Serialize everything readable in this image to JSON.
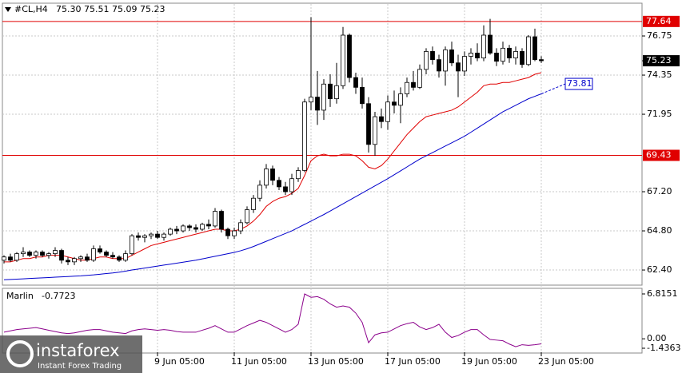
{
  "watermark": {
    "brand": "instaforex",
    "tagline": "Instant Forex Trading"
  },
  "chart_data": [
    {
      "type": "candlestick",
      "symbol": "#CL,H4",
      "quote": "75.30 75.51 75.09 75.23",
      "up_color": "#ffffff",
      "down_color": "#000000",
      "categories": [
        null,
        null,
        null,
        null,
        null,
        null,
        null,
        null,
        null,
        null,
        null,
        null,
        null,
        null,
        null,
        null,
        null,
        null,
        null,
        null,
        null,
        null,
        null,
        null,
        "9 Jun 05:00",
        null,
        null,
        null,
        null,
        null,
        null,
        null,
        null,
        null,
        null,
        null,
        "11 Jun 05:00",
        null,
        null,
        null,
        null,
        null,
        null,
        null,
        null,
        null,
        null,
        null,
        "13 Jun 05:00",
        null,
        null,
        null,
        null,
        null,
        null,
        null,
        null,
        null,
        null,
        null,
        "17 Jun 05:00",
        null,
        null,
        null,
        null,
        null,
        null,
        null,
        null,
        null,
        null,
        null,
        "19 Jun 05:00",
        null,
        null,
        null,
        null,
        null,
        null,
        null,
        null,
        null,
        null,
        null,
        "23 Jun 05:00"
      ],
      "open": [
        63.0,
        63.2,
        63.0,
        63.4,
        63.5,
        63.3,
        63.5,
        63.3,
        63.4,
        63.6,
        63.0,
        62.9,
        63.1,
        63.2,
        63.0,
        63.7,
        63.5,
        63.3,
        63.2,
        63.0,
        63.4,
        64.5,
        64.4,
        64.5,
        64.6,
        64.4,
        64.6,
        64.9,
        64.8,
        65.1,
        65.0,
        64.9,
        65.2,
        65.1,
        66.0,
        64.9,
        64.5,
        64.8,
        65.3,
        66.1,
        66.8,
        67.6,
        68.6,
        67.9,
        67.5,
        67.2,
        68.0,
        68.5,
        72.7,
        73.0,
        72.2,
        73.8,
        72.9,
        73.7,
        76.8,
        74.2,
        73.6,
        72.6,
        70.1,
        71.8,
        71.5,
        72.7,
        72.5,
        73.2,
        73.9,
        73.6,
        74.7,
        75.8,
        75.3,
        74.6,
        75.9,
        75.1,
        74.6,
        75.5,
        75.7,
        75.4,
        76.8,
        75.7,
        75.2,
        76.0,
        75.4,
        75.8,
        75.0,
        76.7,
        75.3
      ],
      "high": [
        63.3,
        63.4,
        63.5,
        63.8,
        63.6,
        63.6,
        63.6,
        63.5,
        63.8,
        63.7,
        63.2,
        63.2,
        63.3,
        63.4,
        63.9,
        63.9,
        63.6,
        63.5,
        63.3,
        63.6,
        64.6,
        64.7,
        64.6,
        64.7,
        64.8,
        64.7,
        65.0,
        65.1,
        65.2,
        65.2,
        65.2,
        65.3,
        65.5,
        66.2,
        66.1,
        65.0,
        65.0,
        65.5,
        66.3,
        67.0,
        67.9,
        68.9,
        68.8,
        68.1,
        67.8,
        68.3,
        68.7,
        72.9,
        77.9,
        74.6,
        74.1,
        74.4,
        75.1,
        77.3,
        76.9,
        74.5,
        74.2,
        73.0,
        72.1,
        72.3,
        73.1,
        73.4,
        73.6,
        74.2,
        74.6,
        75.0,
        76.0,
        76.1,
        75.6,
        76.1,
        76.4,
        75.6,
        75.8,
        76.0,
        76.3,
        77.4,
        77.8,
        76.0,
        76.4,
        76.2,
        76.1,
        76.0,
        76.8,
        77.2,
        75.51
      ],
      "low": [
        62.8,
        62.9,
        62.9,
        63.2,
        63.2,
        63.1,
        63.2,
        63.1,
        63.2,
        62.8,
        62.7,
        62.7,
        62.9,
        62.9,
        62.9,
        63.4,
        63.2,
        63.1,
        62.9,
        62.9,
        63.3,
        64.2,
        64.1,
        64.3,
        64.3,
        64.2,
        64.5,
        64.6,
        64.7,
        64.8,
        64.7,
        64.8,
        64.9,
        65.0,
        64.7,
        64.3,
        64.3,
        64.6,
        65.2,
        65.9,
        66.6,
        67.4,
        67.6,
        67.3,
        67.0,
        67.0,
        67.8,
        68.4,
        72.2,
        71.3,
        71.6,
        72.4,
        72.6,
        73.5,
        73.9,
        73.2,
        72.3,
        69.6,
        69.4,
        71.1,
        71.0,
        72.0,
        71.4,
        73.0,
        73.4,
        73.5,
        74.4,
        75.0,
        74.2,
        73.7,
        74.9,
        73.0,
        74.3,
        75.0,
        75.2,
        75.2,
        75.6,
        74.9,
        75.0,
        75.1,
        75.0,
        74.8,
        74.9,
        75.2,
        75.09
      ],
      "close": [
        63.2,
        63.0,
        63.4,
        63.5,
        63.3,
        63.5,
        63.3,
        63.4,
        63.6,
        63.0,
        62.9,
        63.1,
        63.2,
        63.0,
        63.7,
        63.5,
        63.3,
        63.2,
        63.0,
        63.4,
        64.5,
        64.4,
        64.5,
        64.6,
        64.4,
        64.6,
        64.9,
        64.8,
        65.1,
        65.0,
        64.9,
        65.2,
        65.1,
        66.0,
        64.9,
        64.5,
        64.8,
        65.3,
        66.1,
        66.8,
        67.6,
        68.6,
        67.9,
        67.5,
        67.2,
        68.0,
        68.5,
        72.7,
        73.0,
        72.2,
        73.8,
        72.9,
        73.7,
        76.8,
        74.2,
        73.6,
        72.6,
        70.1,
        71.8,
        71.5,
        72.7,
        72.5,
        73.2,
        73.9,
        73.6,
        74.7,
        75.8,
        75.3,
        74.6,
        75.9,
        75.1,
        74.6,
        75.5,
        75.7,
        75.4,
        76.8,
        75.7,
        75.2,
        76.0,
        75.4,
        75.8,
        75.0,
        76.7,
        75.3,
        75.23
      ],
      "last_price_label": "75.23",
      "ylim": [
        61.57,
        78.71
      ],
      "yticks": [
        {
          "value": 62.4,
          "label": "62.40"
        },
        {
          "value": 64.8,
          "label": "64.80"
        },
        {
          "value": 67.2,
          "label": "67.20"
        },
        71.95,
        74.35,
        76.75
      ],
      "grid": true,
      "levels": [
        {
          "value": 77.64,
          "color": "#e00000"
        },
        {
          "value": 69.43,
          "color": "#e00000"
        }
      ],
      "lines": [
        {
          "color": "#e00000",
          "values": [
            62.9,
            62.9,
            63.0,
            63.1,
            63.1,
            63.2,
            63.2,
            63.3,
            63.3,
            63.3,
            63.2,
            63.1,
            63.0,
            63.0,
            63.1,
            63.2,
            63.2,
            63.1,
            63.1,
            63.1,
            63.3,
            63.5,
            63.7,
            63.9,
            64.0,
            64.1,
            64.2,
            64.3,
            64.4,
            64.5,
            64.6,
            64.7,
            64.8,
            64.9,
            64.9,
            64.8,
            64.8,
            64.9,
            65.1,
            65.4,
            65.8,
            66.3,
            66.6,
            66.8,
            66.9,
            67.1,
            67.4,
            68.2,
            69.1,
            69.4,
            69.5,
            69.4,
            69.4,
            69.5,
            69.5,
            69.4,
            69.1,
            68.7,
            68.6,
            68.8,
            69.2,
            69.7,
            70.2,
            70.7,
            71.1,
            71.5,
            71.8,
            71.9,
            72.0,
            72.1,
            72.2,
            72.4,
            72.7,
            73.0,
            73.3,
            73.7,
            73.8,
            73.8,
            73.9,
            73.9,
            74.0,
            74.1,
            74.2,
            74.4,
            74.5
          ]
        },
        {
          "color": "#0000cc",
          "projection": 73.81,
          "values": [
            61.8,
            61.82,
            61.84,
            61.86,
            61.88,
            61.9,
            61.92,
            61.94,
            61.96,
            61.98,
            62.0,
            62.02,
            62.04,
            62.07,
            62.1,
            62.14,
            62.18,
            62.22,
            62.27,
            62.33,
            62.4,
            62.46,
            62.52,
            62.58,
            62.64,
            62.7,
            62.76,
            62.82,
            62.88,
            62.94,
            63.0,
            63.08,
            63.16,
            63.24,
            63.32,
            63.4,
            63.48,
            63.58,
            63.7,
            63.84,
            64.0,
            64.16,
            64.32,
            64.48,
            64.64,
            64.8,
            65.0,
            65.2,
            65.4,
            65.6,
            65.8,
            66.02,
            66.24,
            66.46,
            66.68,
            66.9,
            67.12,
            67.34,
            67.56,
            67.78,
            68.0,
            68.24,
            68.48,
            68.72,
            68.96,
            69.2,
            69.4,
            69.6,
            69.8,
            70.0,
            70.2,
            70.4,
            70.6,
            70.85,
            71.1,
            71.35,
            71.6,
            71.85,
            72.1,
            72.3,
            72.5,
            72.7,
            72.9,
            73.05,
            73.2
          ]
        }
      ]
    },
    {
      "type": "line",
      "name": "Marlin",
      "current": -0.7723,
      "color": "#8b008b",
      "values": [
        1.0,
        1.2,
        1.4,
        1.5,
        1.6,
        1.7,
        1.5,
        1.3,
        1.1,
        0.9,
        0.8,
        0.9,
        1.1,
        1.3,
        1.4,
        1.4,
        1.2,
        1.0,
        0.9,
        0.8,
        1.2,
        1.4,
        1.5,
        1.4,
        1.3,
        1.4,
        1.3,
        1.1,
        1.0,
        1.0,
        1.0,
        1.3,
        1.6,
        2.0,
        1.5,
        1.0,
        1.0,
        1.5,
        2.0,
        2.4,
        2.8,
        2.5,
        2.0,
        1.5,
        1.0,
        1.4,
        2.2,
        6.8151,
        6.3,
        6.4,
        6.0,
        5.3,
        4.8,
        5.0,
        4.8,
        3.9,
        2.5,
        -0.6,
        0.6,
        0.9,
        1.0,
        1.5,
        2.0,
        2.3,
        2.5,
        1.8,
        1.4,
        1.7,
        2.2,
        1.0,
        0.2,
        0.5,
        1.0,
        1.4,
        1.4,
        0.6,
        -0.1,
        -0.2,
        -0.3,
        -0.8,
        -1.2,
        -0.9,
        -1.0,
        -0.9,
        -0.7723
      ],
      "ylim": [
        -1.4363,
        6.8151
      ],
      "yticks": [
        6.8151,
        {
          "value": 0,
          "label": "0.00"
        },
        -1.4363
      ]
    }
  ]
}
